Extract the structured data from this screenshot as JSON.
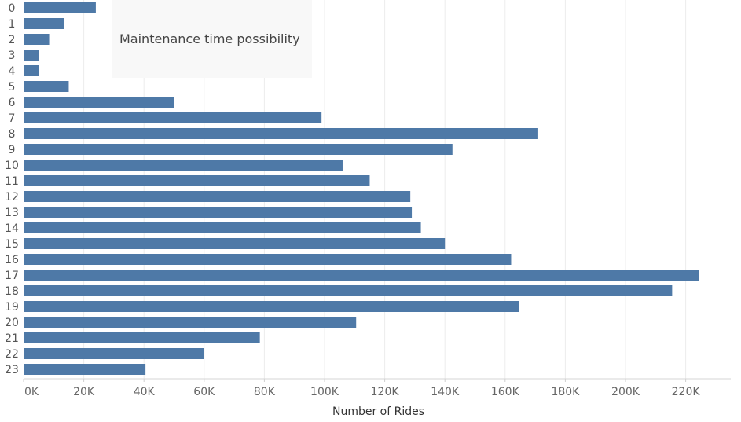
{
  "chart_data": {
    "type": "bar",
    "orientation": "horizontal",
    "categories": [
      "0",
      "1",
      "2",
      "3",
      "4",
      "5",
      "6",
      "7",
      "8",
      "9",
      "10",
      "11",
      "12",
      "13",
      "14",
      "15",
      "16",
      "17",
      "18",
      "19",
      "20",
      "21",
      "22",
      "23"
    ],
    "values": [
      24000,
      13500,
      8500,
      5000,
      5000,
      15000,
      50000,
      99000,
      171000,
      142500,
      106000,
      115000,
      128500,
      129000,
      132000,
      140000,
      162000,
      224500,
      215500,
      164500,
      110500,
      78500,
      60000,
      40500
    ],
    "xlabel": "Number of Rides",
    "ylabel": "",
    "xlim": [
      0,
      235000
    ],
    "x_ticks": [
      "0K",
      "20K",
      "40K",
      "60K",
      "80K",
      "100K",
      "120K",
      "140K",
      "160K",
      "180K",
      "200K",
      "220K"
    ],
    "x_tick_values": [
      0,
      20000,
      40000,
      60000,
      80000,
      100000,
      120000,
      140000,
      160000,
      180000,
      200000,
      220000
    ],
    "grid": "vertical",
    "bar_color": "#4e79a7",
    "annotation": "Maintenance time possibility"
  }
}
